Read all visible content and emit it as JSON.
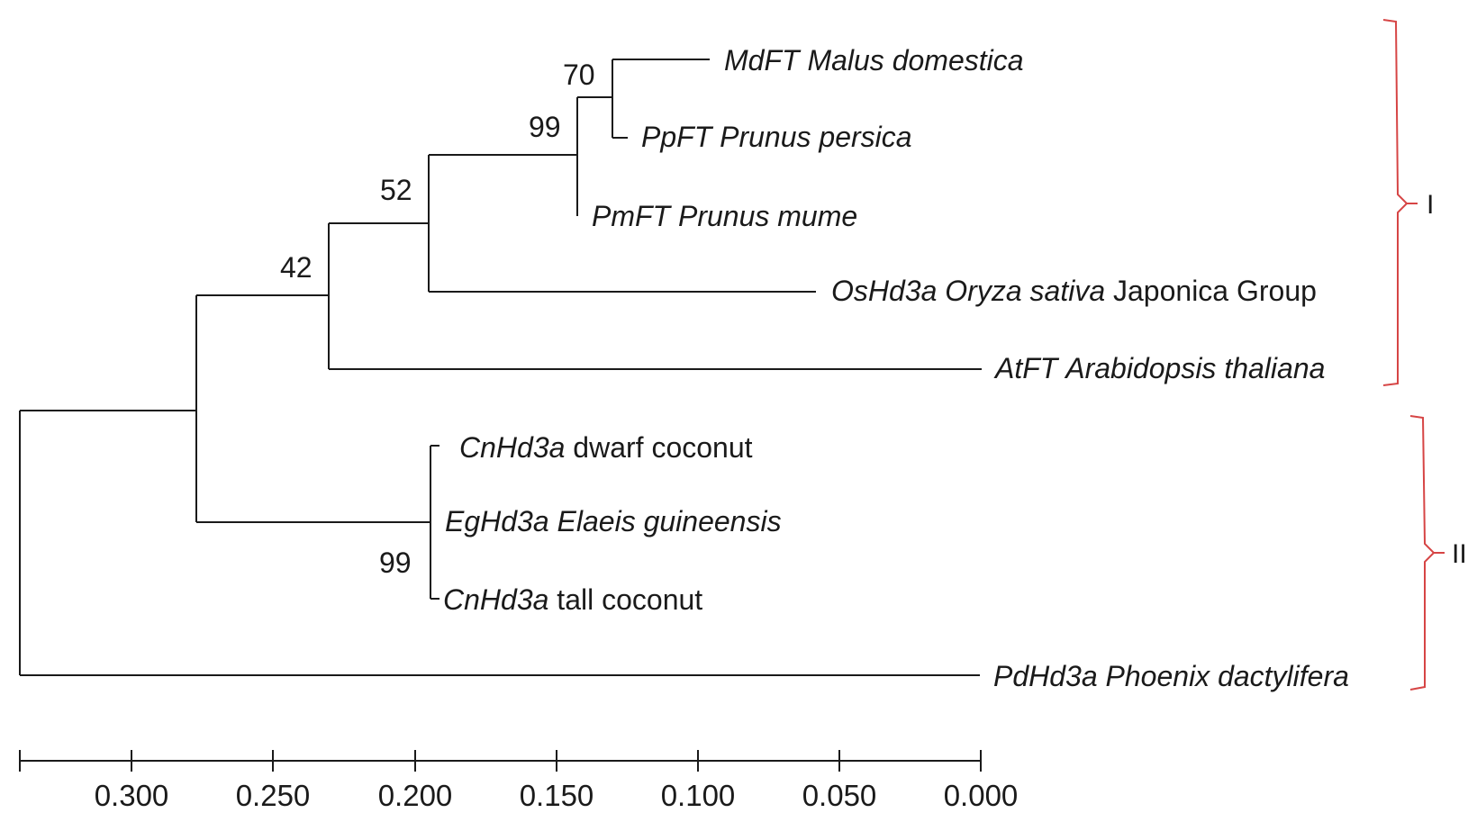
{
  "taxa": [
    {
      "gene": "MdFT",
      "species": "Malus domestica",
      "suffix": ""
    },
    {
      "gene": "PpFT",
      "species": "Prunus persica",
      "suffix": ""
    },
    {
      "gene": "PmFT",
      "species": "Prunus mume",
      "suffix": ""
    },
    {
      "gene": "OsHd3a",
      "species": "Oryza sativa",
      "suffix": "Japonica Group"
    },
    {
      "gene": "AtFT",
      "species": "Arabidopsis thaliana",
      "suffix": ""
    },
    {
      "gene": "CnHd3a",
      "species": "",
      "suffix": "dwarf coconut"
    },
    {
      "gene": "EgHd3a",
      "species": "Elaeis guineensis",
      "suffix": ""
    },
    {
      "gene": "CnHd3a",
      "species": "",
      "suffix": "tall coconut"
    },
    {
      "gene": "PdHd3a",
      "species": "Phoenix dactylifera",
      "suffix": ""
    }
  ],
  "bootstrap": [
    "70",
    "99",
    "52",
    "42",
    "99"
  ],
  "clades": [
    "I",
    "II"
  ],
  "scale_ticks": [
    "0.300",
    "0.250",
    "0.200",
    "0.150",
    "0.100",
    "0.050",
    "0.000"
  ],
  "bracket_color": "#d64545"
}
